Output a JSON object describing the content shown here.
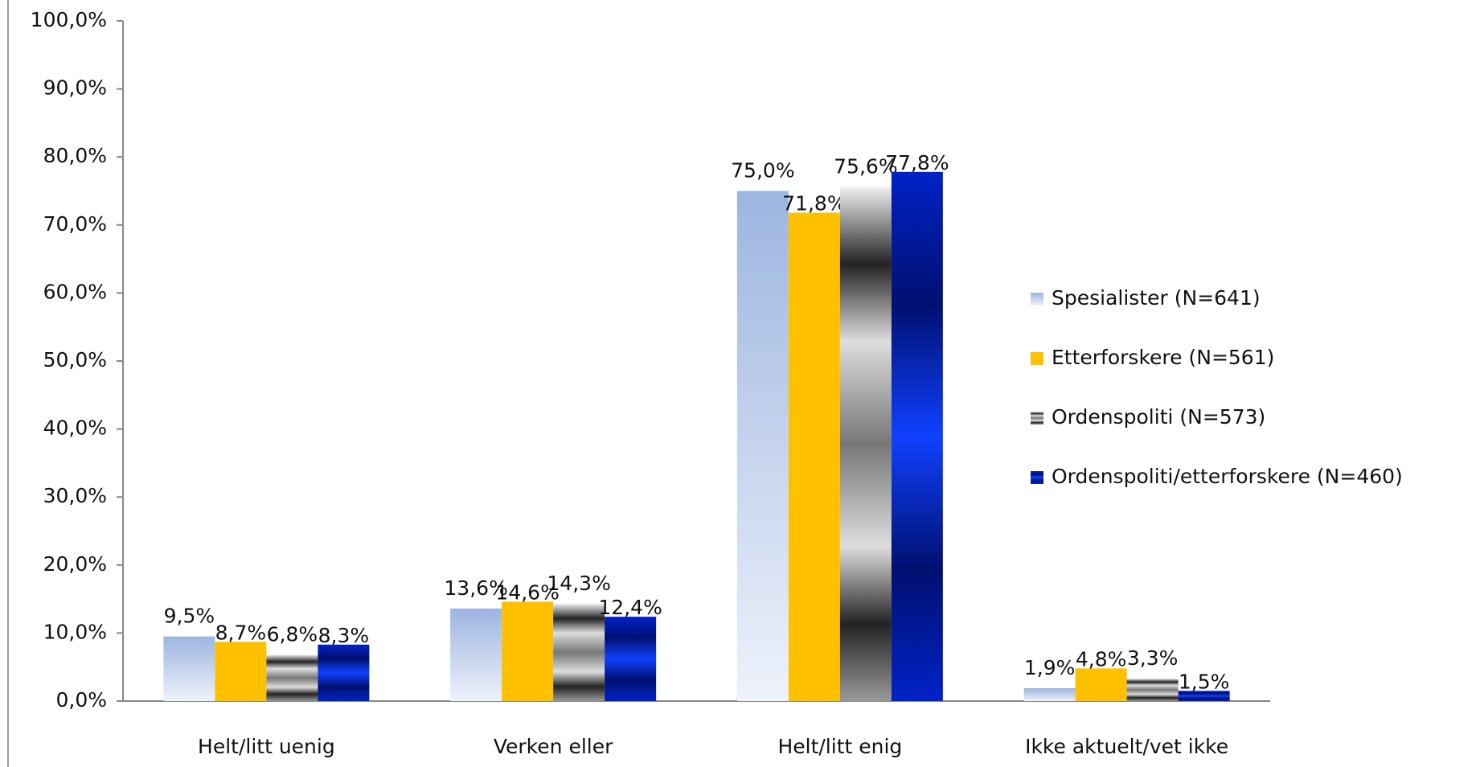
{
  "chart_data": {
    "type": "bar",
    "categories": [
      "Helt/litt uenig",
      "Verken eller",
      "Helt/litt enig",
      "Ikke aktuelt/vet ikke"
    ],
    "series": [
      {
        "name": "Spesialister (N=641)",
        "color": "#9db5e0",
        "values": [
          9.5,
          13.6,
          75.0,
          1.9
        ],
        "value_labels": [
          "9,5%",
          "13,6%",
          "75,0%",
          "1,9%"
        ]
      },
      {
        "name": "Etterforskere (N=561)",
        "color": "#ffc000",
        "values": [
          8.7,
          14.6,
          71.8,
          4.8
        ],
        "value_labels": [
          "8,7%",
          "14,6%",
          "71,8%",
          "4,8%"
        ]
      },
      {
        "name": "Ordenspoliti (N=573)",
        "color": "#808080",
        "values": [
          6.8,
          14.3,
          75.6,
          3.3
        ],
        "value_labels": [
          "6,8%",
          "14,3%",
          "75,6%",
          "3,3%"
        ]
      },
      {
        "name": "Ordenspoliti/etterforskere (N=460)",
        "color": "#0022c8",
        "values": [
          8.3,
          12.4,
          77.8,
          1.5
        ],
        "value_labels": [
          "8,3%",
          "12,4%",
          "77,8%",
          "1,5%"
        ]
      }
    ],
    "ylim": [
      0,
      100
    ],
    "yticks": [
      {
        "value": 0,
        "label": "0,0%"
      },
      {
        "value": 10,
        "label": "10,0%"
      },
      {
        "value": 20,
        "label": "20,0%"
      },
      {
        "value": 30,
        "label": "30,0%"
      },
      {
        "value": 40,
        "label": "40,0%"
      },
      {
        "value": 50,
        "label": "50,0%"
      },
      {
        "value": 60,
        "label": "60,0%"
      },
      {
        "value": 70,
        "label": "70,0%"
      },
      {
        "value": 80,
        "label": "80,0%"
      },
      {
        "value": 90,
        "label": "90,0%"
      },
      {
        "value": 100,
        "label": "100,0%"
      }
    ],
    "grid": false,
    "legend": "right"
  }
}
